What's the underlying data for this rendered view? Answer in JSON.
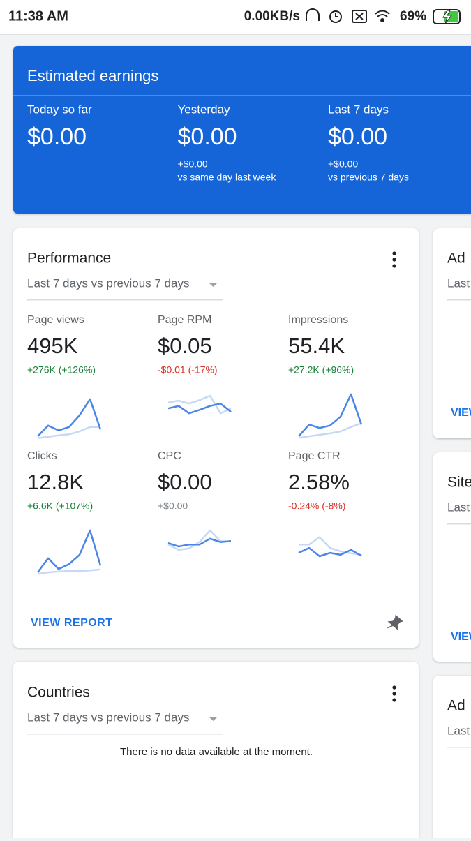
{
  "status_bar": {
    "time": "11:38 AM",
    "network_speed": "0.00KB/s",
    "battery": "69%"
  },
  "earnings": {
    "title": "Estimated earnings",
    "items": [
      {
        "label": "Today so far",
        "value": "$0.00"
      },
      {
        "label": "Yesterday",
        "value": "$0.00",
        "change": "+$0.00",
        "comparison": "vs same day last week"
      },
      {
        "label": "Last 7 days",
        "value": "$0.00",
        "change": "+$0.00",
        "comparison": "vs previous 7 days"
      }
    ]
  },
  "performance": {
    "title": "Performance",
    "period": "Last 7 days vs previous 7 days",
    "current_color": "#4a86e8",
    "previous_color": "#c5d9f7",
    "metrics": [
      {
        "label": "Page views",
        "value": "495K",
        "change": "+276K (+126%)",
        "trend": "positive",
        "current": [
          7,
          29,
          19,
          26,
          50,
          83,
          21
        ],
        "previous": [
          3,
          6,
          9,
          11,
          17,
          26,
          26
        ]
      },
      {
        "label": "Page RPM",
        "value": "$0.05",
        "change": "-$0.01 (-17%)",
        "trend": "negative",
        "current": [
          64,
          69,
          54,
          61,
          69,
          74,
          57
        ],
        "previous": [
          76,
          80,
          74,
          81,
          90,
          54,
          64
        ]
      },
      {
        "label": "Impressions",
        "value": "55.4K",
        "change": "+27.2K (+96%)",
        "trend": "positive",
        "current": [
          7,
          31,
          24,
          29,
          47,
          93,
          31
        ],
        "previous": [
          4,
          7,
          10,
          13,
          17,
          26,
          34
        ]
      },
      {
        "label": "Clicks",
        "value": "12.8K",
        "change": "+6.6K (+107%)",
        "trend": "positive",
        "current": [
          7,
          36,
          14,
          24,
          43,
          93,
          21
        ],
        "previous": [
          4,
          7,
          9,
          10,
          10,
          11,
          13
        ]
      },
      {
        "label": "CPC",
        "value": "$0.00",
        "change": "+$0.00",
        "trend": "neutral",
        "current": [
          67,
          60,
          64,
          64,
          76,
          69,
          71
        ],
        "previous": [
          64,
          53,
          56,
          69,
          93,
          71,
          70
        ]
      },
      {
        "label": "Page CTR",
        "value": "2.58%",
        "change": "-0.24% (-8%)",
        "trend": "negative",
        "current": [
          47,
          57,
          40,
          47,
          43,
          53,
          41
        ],
        "previous": [
          64,
          64,
          79,
          57,
          50,
          46,
          43
        ]
      }
    ],
    "action": "VIEW REPORT"
  },
  "side_cards": [
    {
      "title": "Ad",
      "period": "Last",
      "action": "VIEW"
    },
    {
      "title": "Site",
      "period": "Last",
      "action": "VIEW"
    },
    {
      "title": "Ad",
      "period": "Last"
    }
  ],
  "countries": {
    "title": "Countries",
    "period": "Last 7 days vs previous 7 days",
    "empty_message": "There is no data available at the moment."
  }
}
